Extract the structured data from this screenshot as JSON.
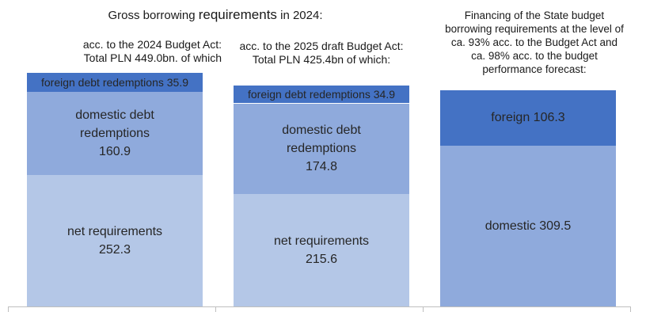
{
  "chart_data": {
    "type": "bar",
    "stacked": true,
    "title": "Gross borrowing requirements in 2024:",
    "unit": "PLN bn",
    "categories": [
      "acc. to the 2024 Budget Act: Total PLN 449.0bn. of which",
      "acc. to the 2025 draft Budget Act: Total PLN 425.4bn of which:",
      "Financing of the State budget borrowing requirements at the level of ca. 93% acc. to the Budget Act and ca. 98% acc. to the budget performance forecast:"
    ],
    "bars": [
      {
        "segments": [
          {
            "label": "net requirements",
            "value": 252.3,
            "color": "#b4c7e7"
          },
          {
            "label": "domestic debt redemptions",
            "value": 160.9,
            "color": "#8faadc"
          },
          {
            "label": "foreign debt redemptions",
            "value": 35.9,
            "color": "#4472c4"
          }
        ]
      },
      {
        "segments": [
          {
            "label": "net requirements",
            "value": 215.6,
            "color": "#b4c7e7"
          },
          {
            "label": "domestic debt redemptions",
            "value": 174.8,
            "color": "#8faadc"
          },
          {
            "label": "foreign debt redemptions",
            "value": 34.9,
            "color": "#4472c4"
          }
        ]
      },
      {
        "segments": [
          {
            "label": "domestic",
            "value": 309.5,
            "color": "#8faadc"
          },
          {
            "label": "foreign",
            "value": 106.3,
            "color": "#4472c4"
          }
        ]
      }
    ]
  },
  "text": {
    "title_pre": "Gross borrowing ",
    "title_emph": "requirements",
    "title_post": " in 2024:",
    "caption_1_line1": "acc. to the 2024 Budget Act:",
    "caption_1_line2": "Total PLN 449.0bn. of which",
    "caption_2_line1": "acc. to the 2025 draft Budget Act:",
    "caption_2_line2": "Total PLN 425.4bn of which:",
    "caption_3_line1": "Financing of the State budget",
    "caption_3_line2": "borrowing requirements at the level of",
    "caption_3_line3": "ca. 93% acc. to the Budget Act and",
    "caption_3_line4": "ca. 98% acc. to the budget",
    "caption_3_line5": "performance forecast:",
    "bar1_seg1": "net requirements\n252.3",
    "bar1_seg2": "domestic debt\nredemptions\n160.9",
    "bar1_seg3": "foreign debt redemptions 35.9",
    "bar2_seg1": "net requirements\n215.6",
    "bar2_seg2": "domestic debt\nredemptions\n174.8",
    "bar2_seg3": "foreign debt redemptions 34.9",
    "bar3_seg1": "domestic 309.5",
    "bar3_seg2": "foreign 106.3"
  }
}
